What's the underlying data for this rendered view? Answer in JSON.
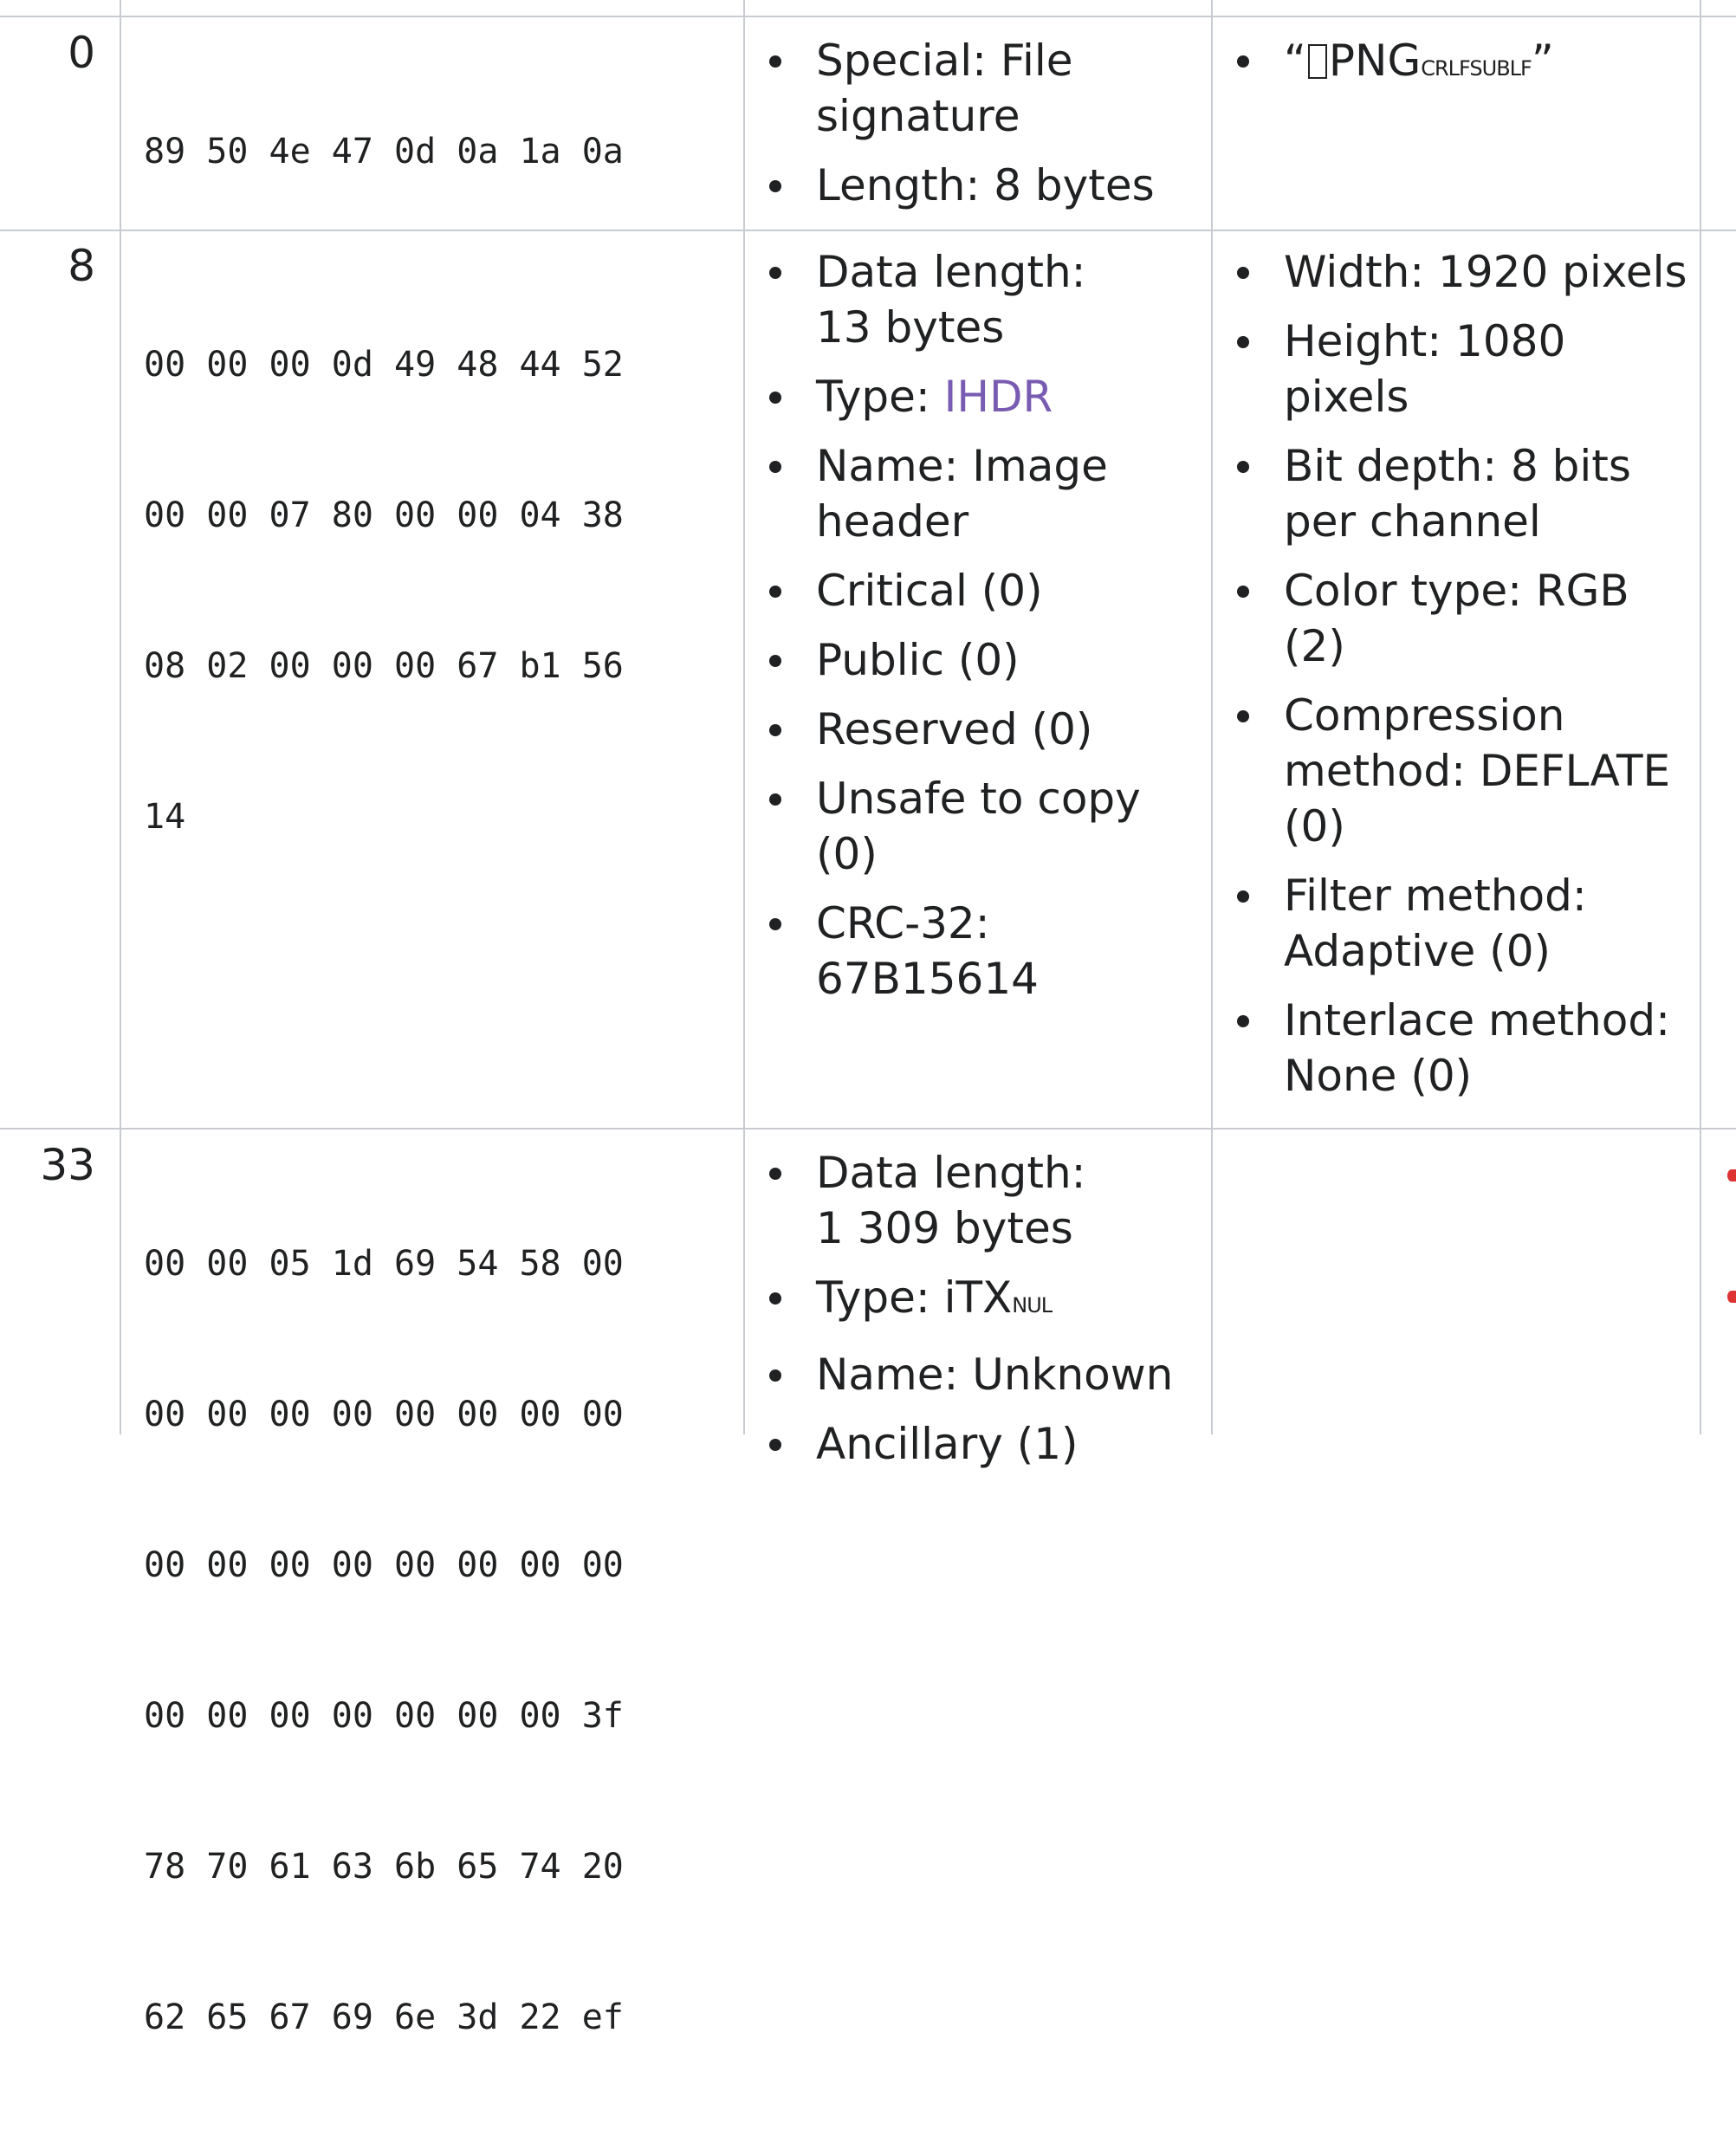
{
  "rows": [
    {
      "offset": "0",
      "hex_lines": [
        "89 50 4e 47 0d 0a 1a 0a"
      ],
      "chunk": [
        "Special: File signature",
        "Length: 8 bytes"
      ],
      "details": {
        "quote_open": "“",
        "text": "PNG",
        "ctrl": "CRLFSUBLF",
        "quote_close": "”"
      }
    },
    {
      "offset": "8",
      "hex_lines": [
        "00 00 00 0d 49 48 44 52",
        "00 00 07 80 00 00 04 38",
        "08 02 00 00 00 67 b1 56",
        "14"
      ],
      "chunk": {
        "data_length": "Data length: 13 bytes",
        "type_label": "Type: ",
        "type_value": "IHDR",
        "name": "Name: Image header",
        "critical": "Critical (0)",
        "public": "Public (0)",
        "reserved": "Reserved (0)",
        "unsafe": "Unsafe to copy (0)",
        "crc": "CRC-32: 67B15614"
      },
      "details": [
        "Width: 1920 pixels",
        "Height: 1080 pixels",
        "Bit depth: 8 bits per channel",
        "Color type: RGB (2)",
        "Compression method: DEFLATE (0)",
        "Filter method: Adaptive (0)",
        "Interlace method: None (0)"
      ]
    },
    {
      "offset": "33",
      "hex_lines": [
        "00 00 05 1d 69 54 58 00",
        "00 00 00 00 00 00 00 00",
        "00 00 00 00 00 00 00 00",
        "00 00 00 00 00 00 00 3f",
        "78 70 61 63 6b 65 74 20",
        "62 65 67 69 6e 3d 22 ef"
      ],
      "chunk": {
        "data_length": "Data length: 1 309 bytes",
        "type_label": "Type: iTX",
        "type_ctrl": "NUL",
        "name": "Name: Unknown",
        "ancillary": "Ancillary (1)"
      }
    }
  ],
  "colors": {
    "border": "#c8ccd1",
    "link": "#795cb2",
    "text": "#202122",
    "marker": "#dd3333"
  }
}
